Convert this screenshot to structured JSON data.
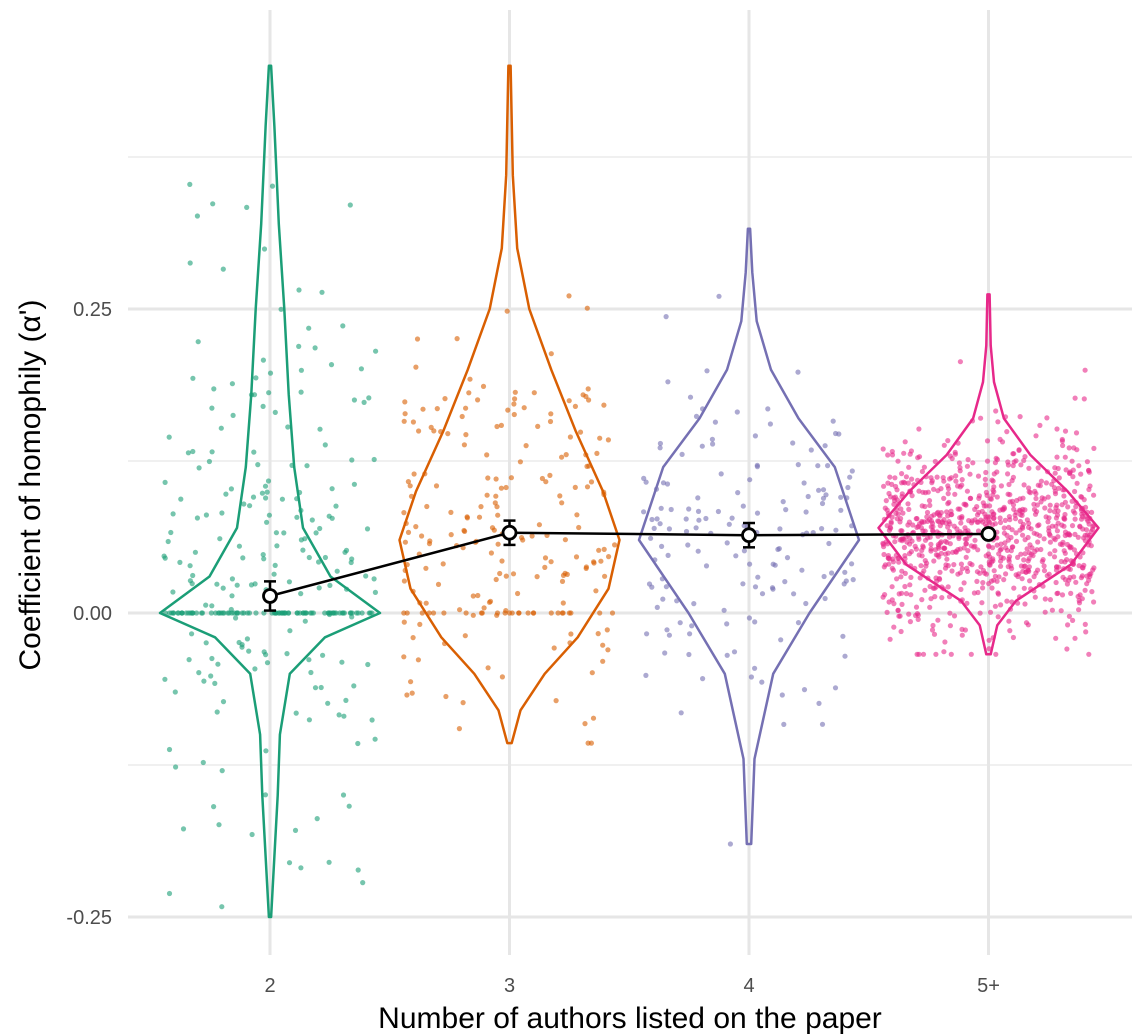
{
  "chart_data": {
    "type": "violin",
    "title": "",
    "xlabel": "Number of authors listed on the paper",
    "ylabel": "Coefficient of homophily (α')",
    "categories": [
      "2",
      "3",
      "4",
      "5+"
    ],
    "ylim": [
      -0.28,
      0.5
    ],
    "y_ticks": [
      {
        "value": 0.25,
        "label": "0.25"
      },
      {
        "value": 0.0,
        "label": "0.00"
      },
      {
        "value": -0.25,
        "label": "-0.25"
      }
    ],
    "grid": true,
    "legend": "none",
    "colors": [
      "#1b9e77",
      "#d95f02",
      "#7570b3",
      "#e7298a"
    ],
    "series": [
      {
        "category": "2",
        "mean": 0.014,
        "ci": [
          0.002,
          0.026
        ],
        "range": [
          -0.25,
          0.45
        ],
        "point_count_approx": 290,
        "violin_density": [
          [
            -0.25,
            0.01
          ],
          [
            -0.2,
            0.04
          ],
          [
            -0.15,
            0.07
          ],
          [
            -0.1,
            0.09
          ],
          [
            -0.05,
            0.18
          ],
          [
            -0.02,
            0.5
          ],
          [
            0.0,
            1.0
          ],
          [
            0.03,
            0.55
          ],
          [
            0.07,
            0.3
          ],
          [
            0.12,
            0.22
          ],
          [
            0.18,
            0.17
          ],
          [
            0.25,
            0.13
          ],
          [
            0.32,
            0.08
          ],
          [
            0.4,
            0.04
          ],
          [
            0.45,
            0.01
          ]
        ]
      },
      {
        "category": "3",
        "mean": 0.066,
        "ci": [
          0.056,
          0.076
        ],
        "range": [
          -0.107,
          0.462
        ],
        "point_count_approx": 220,
        "violin_density": [
          [
            -0.107,
            0.02
          ],
          [
            -0.08,
            0.1
          ],
          [
            -0.05,
            0.32
          ],
          [
            -0.02,
            0.62
          ],
          [
            0.02,
            0.9
          ],
          [
            0.06,
            1.0
          ],
          [
            0.1,
            0.85
          ],
          [
            0.15,
            0.6
          ],
          [
            0.2,
            0.38
          ],
          [
            0.25,
            0.18
          ],
          [
            0.3,
            0.07
          ],
          [
            0.36,
            0.03
          ],
          [
            0.45,
            0.01
          ]
        ]
      },
      {
        "category": "4",
        "mean": 0.064,
        "ci": [
          0.054,
          0.074
        ],
        "range": [
          -0.19,
          0.316
        ],
        "point_count_approx": 160,
        "violin_density": [
          [
            -0.19,
            0.02
          ],
          [
            -0.12,
            0.05
          ],
          [
            -0.05,
            0.22
          ],
          [
            0.0,
            0.55
          ],
          [
            0.06,
            1.0
          ],
          [
            0.12,
            0.78
          ],
          [
            0.16,
            0.45
          ],
          [
            0.2,
            0.2
          ],
          [
            0.24,
            0.07
          ],
          [
            0.28,
            0.03
          ],
          [
            0.316,
            0.01
          ]
        ]
      },
      {
        "category": "5+",
        "mean": 0.065,
        "ci": [
          0.062,
          0.068
        ],
        "range": [
          -0.034,
          0.262
        ],
        "point_count_approx": 900,
        "violin_density": [
          [
            -0.034,
            0.02
          ],
          [
            -0.01,
            0.08
          ],
          [
            0.01,
            0.25
          ],
          [
            0.04,
            0.75
          ],
          [
            0.07,
            1.0
          ],
          [
            0.1,
            0.72
          ],
          [
            0.13,
            0.38
          ],
          [
            0.16,
            0.14
          ],
          [
            0.19,
            0.05
          ],
          [
            0.22,
            0.02
          ],
          [
            0.262,
            0.01
          ]
        ]
      }
    ],
    "mean_line": {
      "color": "#000000"
    }
  }
}
